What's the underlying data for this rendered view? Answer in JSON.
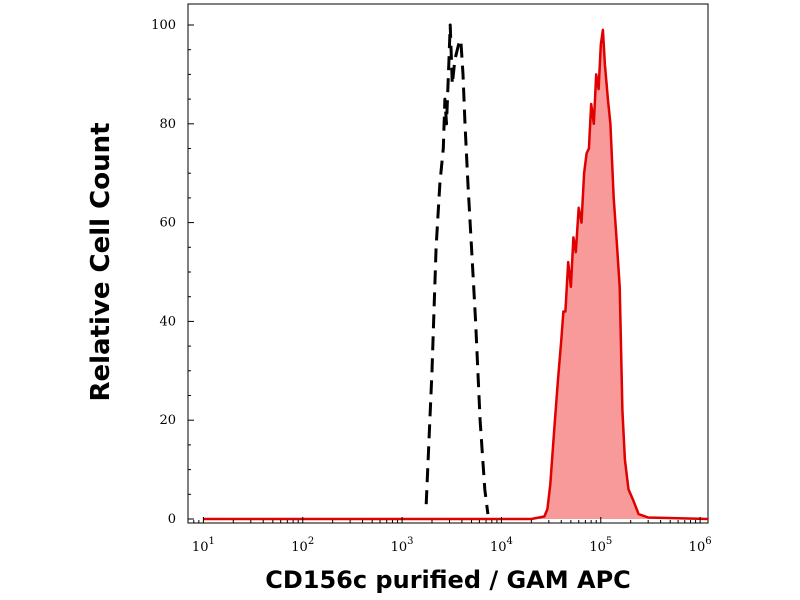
{
  "chart_data": {
    "type": "area",
    "xlabel": "CD156c purified / GAM APC",
    "ylabel": "Relative Cell Count",
    "xscale": "log",
    "xlim": [
      7,
      1200000
    ],
    "ylim": [
      0,
      100
    ],
    "x_ticks": [
      {
        "base": "10",
        "exp": "1",
        "value": 10
      },
      {
        "base": "10",
        "exp": "2",
        "value": 100
      },
      {
        "base": "10",
        "exp": "3",
        "value": 1000
      },
      {
        "base": "10",
        "exp": "4",
        "value": 10000
      },
      {
        "base": "10",
        "exp": "5",
        "value": 100000
      },
      {
        "base": "10",
        "exp": "6",
        "value": 1000000
      }
    ],
    "y_ticks": [
      0,
      20,
      40,
      60,
      80,
      100
    ],
    "grid": false,
    "series": [
      {
        "style": "dashed",
        "color": "#000000",
        "x": [
          1750,
          2000,
          2200,
          2400,
          2600,
          2700,
          2800,
          2950,
          3050,
          3200,
          3400,
          3700,
          3900,
          4100,
          4300,
          4600,
          5000,
          5500,
          6100,
          6800,
          7300
        ],
        "y": [
          3,
          30,
          55,
          68,
          75,
          85,
          80,
          92,
          100,
          88,
          93,
          96,
          97,
          90,
          80,
          68,
          55,
          40,
          20,
          6,
          1
        ]
      },
      {
        "style": "filled",
        "color": "#e00000",
        "fill": "#f99a9a",
        "x": [
          10,
          1000,
          20000,
          27000,
          29000,
          31000,
          34000,
          37000,
          40000,
          42000,
          44000,
          47000,
          50000,
          53000,
          56000,
          60000,
          64000,
          68000,
          72000,
          76000,
          80000,
          85000,
          90000,
          95000,
          100000,
          105000,
          110000,
          118000,
          125000,
          135000,
          145000,
          155000,
          165000,
          175000,
          190000,
          210000,
          240000,
          300000,
          1200000
        ],
        "y": [
          0,
          0,
          0,
          0.5,
          2,
          7,
          18,
          28,
          36,
          42,
          42,
          52,
          47,
          57,
          54,
          63,
          60,
          70,
          74,
          75,
          84,
          80,
          90,
          87,
          96,
          99,
          92,
          85,
          80,
          65,
          56,
          47,
          22,
          12,
          6,
          4,
          1,
          0.3,
          0
        ]
      }
    ]
  }
}
